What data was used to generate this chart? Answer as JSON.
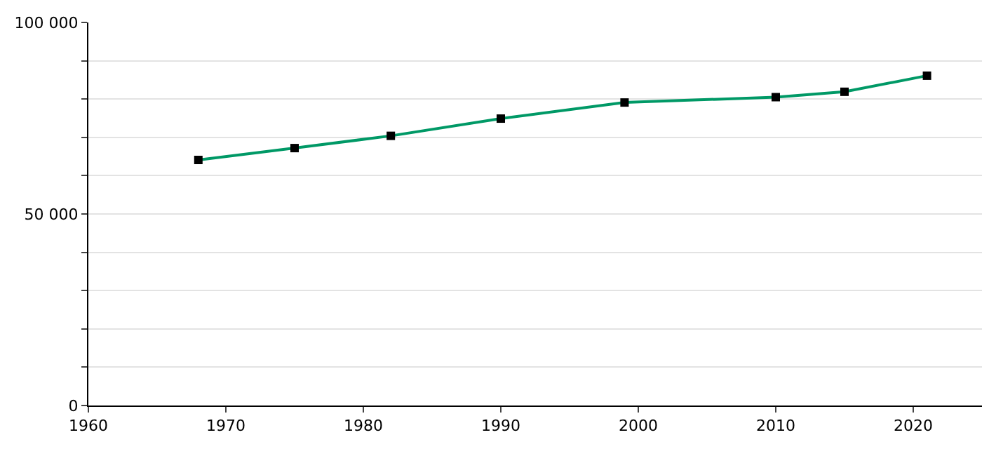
{
  "chart_data": {
    "type": "line",
    "x": [
      1968,
      1975,
      1982,
      1990,
      1999,
      2010,
      2015,
      2021
    ],
    "series": [
      {
        "color": "#009966",
        "values": [
          64100,
          67200,
          70400,
          74900,
          79100,
          80500,
          81900,
          86100
        ]
      }
    ],
    "xlim": [
      1960,
      2025
    ],
    "xticks": [
      1960,
      1970,
      1980,
      1990,
      2000,
      2010,
      2020
    ],
    "ylim": [
      0,
      100000
    ],
    "yticks": [
      {
        "value": 0,
        "label": "0"
      },
      {
        "value": 10000,
        "label": null
      },
      {
        "value": 20000,
        "label": null
      },
      {
        "value": 30000,
        "label": null
      },
      {
        "value": 40000,
        "label": null
      },
      {
        "value": 50000,
        "label": "50 000"
      },
      {
        "value": 60000,
        "label": null
      },
      {
        "value": 70000,
        "label": null
      },
      {
        "value": 80000,
        "label": null
      },
      {
        "value": 90000,
        "label": null
      },
      {
        "value": 100000,
        "label": "100 000"
      }
    ],
    "grid": "y",
    "marker": "square",
    "line_style": "solid",
    "legend": false
  }
}
